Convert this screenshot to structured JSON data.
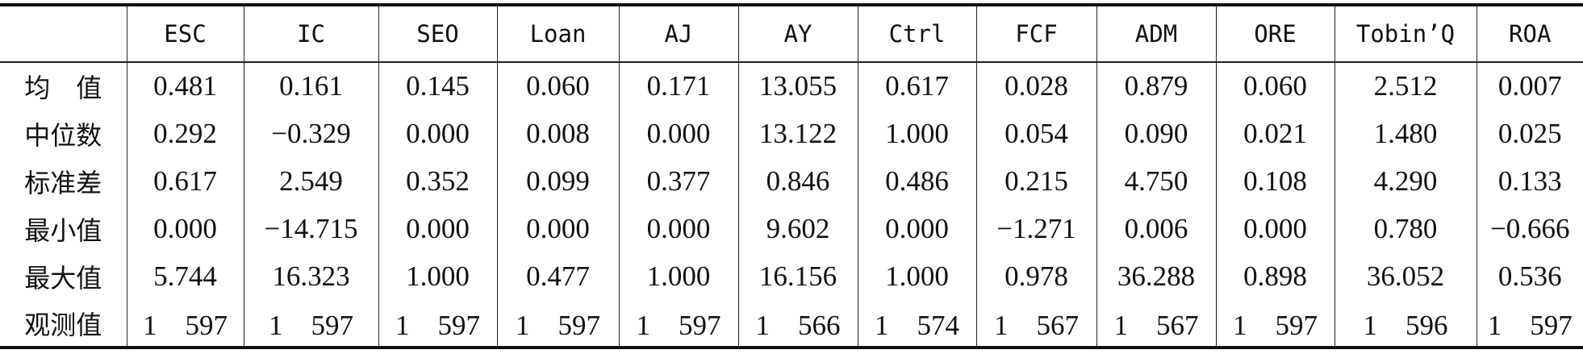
{
  "table": {
    "header": [
      "",
      "ESC",
      "IC",
      "SEO",
      "Loan",
      "AJ",
      "AY",
      "Ctrl",
      "FCF",
      "ADM",
      "ORE",
      "Tobin’Q",
      "ROA"
    ],
    "rows": [
      [
        "均　值",
        "0.481",
        "0.161",
        "0.145",
        "0.060",
        "0.171",
        "13.055",
        "0.617",
        "0.028",
        "0.879",
        "0.060",
        "2.512",
        "0.007"
      ],
      [
        "中位数",
        "0.292",
        "−0.329",
        "0.000",
        "0.008",
        "0.000",
        "13.122",
        "1.000",
        "0.054",
        "0.090",
        "0.021",
        "1.480",
        "0.025"
      ],
      [
        "标准差",
        "0.617",
        "2.549",
        "0.352",
        "0.099",
        "0.377",
        "0.846",
        "0.486",
        "0.215",
        "4.750",
        "0.108",
        "4.290",
        "0.133"
      ],
      [
        "最小值",
        "0.000",
        "−14.715",
        "0.000",
        "0.000",
        "0.000",
        "9.602",
        "0.000",
        "−1.271",
        "0.006",
        "0.000",
        "0.780",
        "−0.666"
      ],
      [
        "最大值",
        "5.744",
        "16.323",
        "1.000",
        "0.477",
        "1.000",
        "16.156",
        "1.000",
        "0.978",
        "36.288",
        "0.898",
        "36.052",
        "0.536"
      ],
      [
        "观测值",
        "1　597",
        "1　597",
        "1　597",
        "1　597",
        "1　597",
        "1　566",
        "1　574",
        "1　567",
        "1　567",
        "1　597",
        "1　596",
        "1　597"
      ]
    ]
  }
}
